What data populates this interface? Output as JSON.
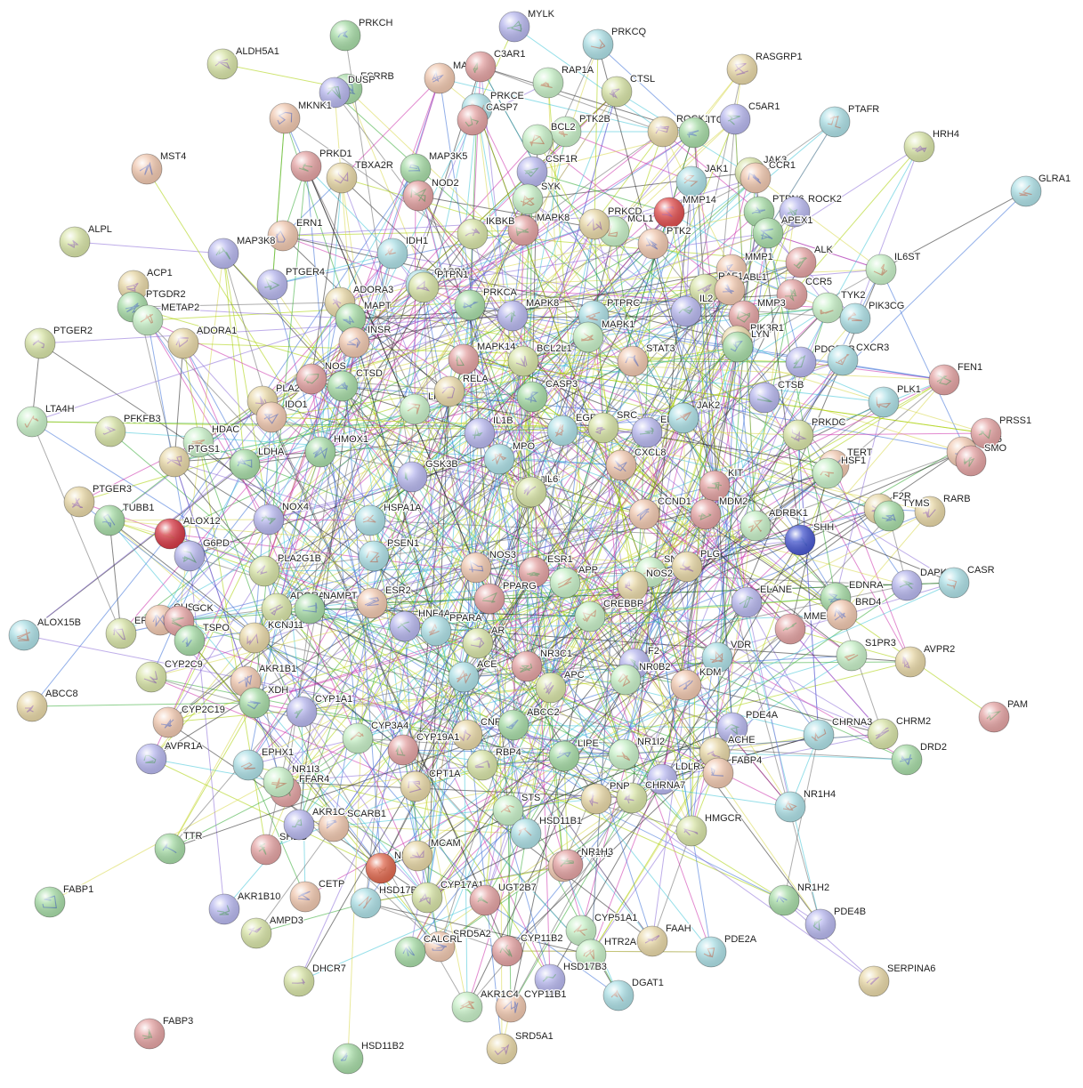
{
  "network": {
    "palette": [
      "#a8dca8",
      "#b8b8ee",
      "#aee0e6",
      "#d8e4a8",
      "#f0c8b0",
      "#e4a4a4",
      "#c8f0c8",
      "#e8d8a8"
    ],
    "edge_colors": [
      "#a8d000",
      "#222222",
      "#cc2eaa",
      "#3a6fd8",
      "#41c6d8",
      "#6b6b6b",
      "#d8d84a",
      "#33aa33",
      "#8a6bd8"
    ],
    "highlight_colors": {
      "ALOX12": "#d63b47",
      "MMP14": "#e05050",
      "SHH": "#4a5ad0",
      "NR3C2": "#e06a50"
    },
    "labels": [
      "PRKCH",
      "MYLK",
      "PRKCQ",
      "ALDH5A1",
      "MAP3K11",
      "C3AR1",
      "RAP1A",
      "RASGRP1",
      "ESRRB",
      "DUSP",
      "PRKCE",
      "CTSL",
      "MKNK1",
      "CASP7",
      "PTK2B",
      "ROCK1",
      "ITGAL",
      "C5AR1",
      "PTAFR",
      "HRH4",
      "MST4",
      "PRKD1",
      "BCL2",
      "TBXA2R",
      "MAP3K5",
      "CSF1R",
      "JAK1",
      "JAK3",
      "CCR1",
      "NOD2",
      "SYK",
      "MMP14",
      "PTPN6",
      "ROCK2",
      "GLRA1",
      "ALPL",
      "ERN1",
      "MAPK8",
      "MCL1",
      "PRKCD",
      "APEX1",
      "MAP3K8",
      "IDH1",
      "IKBKB",
      "PTK2",
      "ALK",
      "IL6ST",
      "ACP1",
      "PTGDR2",
      "PTGER4",
      "CASP1",
      "PTPN1",
      "MMP1",
      "CCR5",
      "METAP2",
      "ADORA3",
      "PRKCA",
      "MAPK8",
      "PTPRC",
      "RAF1",
      "ABL1",
      "MMP3",
      "TYK2",
      "ADORA1",
      "MAPT",
      "IL2",
      "PIK3CG",
      "PTGER2",
      "INSR",
      "MAPK14",
      "MAPK1",
      "PIK3R1",
      "LYN",
      "PDGFRB",
      "CXCR3",
      "BCL2L1",
      "STAT3",
      "FEN1",
      "LTA4H",
      "PLA2G4A",
      "CTSD",
      "CTSB",
      "PLK1",
      "PFKFB3",
      "IDO1",
      "NOS",
      "LRRK2",
      "RELA",
      "CASP3",
      "ERBB2",
      "JAK2",
      "PRKDC",
      "GRK6",
      "PRSS1",
      "HDAC",
      "PTGS1",
      "HMOX1",
      "IL1B",
      "EGFR",
      "SRC",
      "TERT",
      "SMO",
      "ALOX12",
      "PTGER3",
      "LDHA",
      "GSK3B",
      "MPO",
      "TNF",
      "CXCL8",
      "KIT",
      "HSF1",
      "F2R",
      "TUBB1",
      "NOX4",
      "HSPA1A",
      "IL6",
      "CCND1",
      "MDM2",
      "ADRBK1",
      "RARB",
      "TYMS",
      "G6PD",
      "PSEN1",
      "PLA2G1B",
      "NOS3",
      "ESR1",
      "SNC",
      "PLG",
      "SHH",
      "DAPK1",
      "CASR",
      "ADORA2A",
      "ESR2",
      "PPARG",
      "APP",
      "NOS2",
      "EDNRA",
      "ELANE",
      "ALOX15B",
      "EPHX2",
      "CUSB",
      "GCK",
      "CREBBP",
      "KCNJ11",
      "NAMPT",
      "HNF4A",
      "PPARA",
      "AR",
      "BRD4",
      "MME",
      "S1PR3",
      "AVPR2",
      "TSPO",
      "F2",
      "VDR",
      "CYP2C9",
      "AKR1B1",
      "NR3C1",
      "NR0B2",
      "ABCC8",
      "XDH",
      "CYP1A1",
      "ACE",
      "APC",
      "KDM",
      "PAM",
      "CYP3A4",
      "CNR1",
      "ABCC2",
      "PDE4A",
      "CHRNA3",
      "CHRM2",
      "CYP2C19",
      "CYP19A1",
      "NR1I2",
      "ACHE",
      "DRD2",
      "AVPR1A",
      "EPHX1",
      "RBP4",
      "FABP4",
      "FFAR4",
      "NR1I3",
      "CPT1A",
      "LIPE",
      "LDLR",
      "NR1H4",
      "CHRNA7",
      "SCARB1",
      "SHBG",
      "STS",
      "PNP",
      "TTR",
      "AKR1C",
      "HSD11B1",
      "HMGCR",
      "OPRM1",
      "NR1H3",
      "NR3C2",
      "MCAM",
      "FABP1",
      "AKR1B10",
      "HSD17B1",
      "CYP17A1",
      "CETP",
      "UGT2B7",
      "CYP51A1",
      "FAAH",
      "NR1H2",
      "PDE4B",
      "PDE2A",
      "AMPD3",
      "SRD5A2",
      "CYP11B2",
      "HTR2A",
      "SERPINA6",
      "CALCRL",
      "HSD17B3",
      "DGAT1",
      "DHCR7",
      "CYP11B1",
      "FABP3",
      "AKR1C4",
      "SRD5A1",
      "HSD11B2",
      "AKR1C2"
    ]
  }
}
